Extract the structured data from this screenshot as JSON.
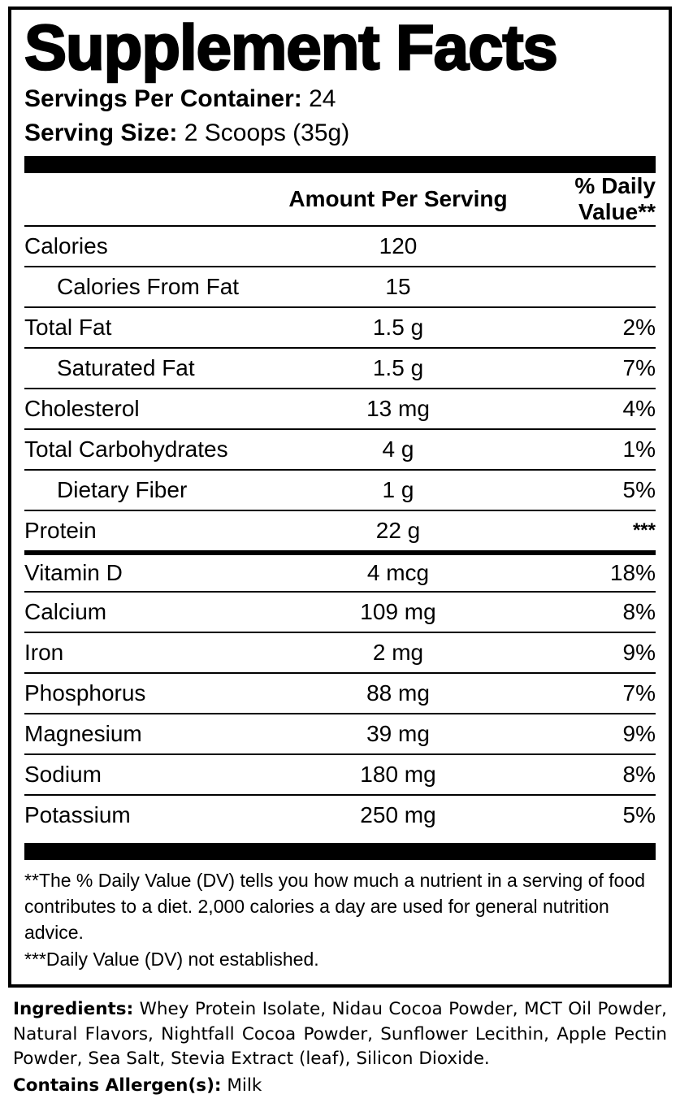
{
  "label": {
    "title": "Supplement Facts",
    "servings_label": "Servings Per Container:",
    "servings_value": "24",
    "serving_size_label": "Serving Size:",
    "serving_size_value": "2 Scoops (35g)",
    "header": {
      "amount": "Amount Per Serving",
      "dv": "% Daily Value**"
    },
    "rows": [
      {
        "name": "Calories",
        "amount": "120",
        "dv": ""
      },
      {
        "name": "Calories From Fat",
        "amount": "15",
        "dv": ""
      },
      {
        "name": "Total Fat",
        "amount": "1.5 g",
        "dv": "2%"
      },
      {
        "name": "Saturated Fat",
        "amount": "1.5 g",
        "dv": "7%"
      },
      {
        "name": "Cholesterol",
        "amount": "13 mg",
        "dv": "4%"
      },
      {
        "name": "Total Carbohydrates",
        "amount": "4 g",
        "dv": "1%"
      },
      {
        "name": "Dietary Fiber",
        "amount": "1 g",
        "dv": "5%"
      },
      {
        "name": "Protein",
        "amount": "22 g",
        "dv": "***"
      },
      {
        "name": "Vitamin D",
        "amount": "4 mcg",
        "dv": "18%"
      },
      {
        "name": "Calcium",
        "amount": "109 mg",
        "dv": "8%"
      },
      {
        "name": "Iron",
        "amount": "2 mg",
        "dv": "9%"
      },
      {
        "name": "Phosphorus",
        "amount": "88 mg",
        "dv": "7%"
      },
      {
        "name": "Magnesium",
        "amount": "39 mg",
        "dv": "9%"
      },
      {
        "name": "Sodium",
        "amount": "180 mg",
        "dv": "8%"
      },
      {
        "name": "Potassium",
        "amount": "250 mg",
        "dv": "5%"
      }
    ],
    "footnotes": [
      "**The % Daily Value (DV) tells you how much a nutrient in a serving of food contributes to a diet. 2,000 calories a day are used for general nutrition advice.",
      "***Daily Value (DV) not established."
    ]
  },
  "ingredients": {
    "label": "Ingredients:",
    "text": "Whey Protein Isolate, Nidau Cocoa Powder, MCT Oil Powder, Natural Flavors, Nightfall Cocoa Powder, Sunflower Lecithin, Apple Pectin Powder, Sea Salt, Stevia Extract (leaf), Silicon Dioxide.",
    "allergen_label": "Contains Allergen(s):",
    "allergen_value": "Milk"
  }
}
